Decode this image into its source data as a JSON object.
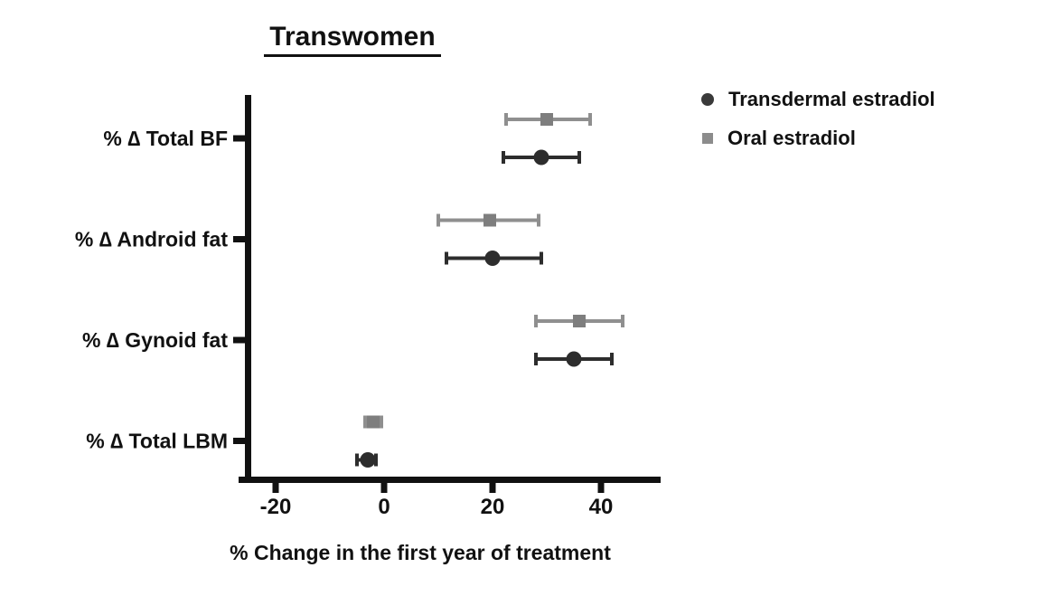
{
  "title": "Transwomen",
  "legend": {
    "items": [
      {
        "label": "Transdermal estradiol",
        "marker": "circle",
        "color": "#3a3a3a"
      },
      {
        "label": "Oral estradiol",
        "marker": "square",
        "color": "#8c8c8c"
      }
    ]
  },
  "xlabel": "% Change in the first year of treatment",
  "colors": {
    "axis": "#111111",
    "text": "#111111",
    "transdermal": "#2d2d2d",
    "oral_line": "#8f8f8f",
    "oral_marker": "#7e7e7e"
  },
  "chart_data": {
    "type": "scatter",
    "subtype": "horizontal-error-bar (forest plot)",
    "title": "Transwomen",
    "xlabel": "% Change in the first year of treatment",
    "categories": [
      "% ∆ Total BF",
      "% ∆ Android fat",
      "% ∆ Gynoid fat",
      "% ∆ Total LBM"
    ],
    "x_ticks": [
      -20,
      0,
      20,
      40
    ],
    "xlim": [
      -27,
      51
    ],
    "grid": false,
    "legend_position": "top-right",
    "series": [
      {
        "name": "Oral estradiol",
        "marker": "square",
        "color": "#8f8f8f",
        "marker_color": "#7e7e7e",
        "values": [
          30,
          19.5,
          36,
          -2
        ],
        "ci_low": [
          22.5,
          10,
          28,
          -3.5
        ],
        "ci_high": [
          38,
          28.5,
          44,
          -0.5
        ]
      },
      {
        "name": "Transdermal estradiol",
        "marker": "circle",
        "color": "#2d2d2d",
        "marker_color": "#2d2d2d",
        "values": [
          29,
          20,
          35,
          -3
        ],
        "ci_low": [
          22,
          11.5,
          28,
          -5
        ],
        "ci_high": [
          36,
          29,
          42,
          -1.5
        ]
      }
    ]
  }
}
